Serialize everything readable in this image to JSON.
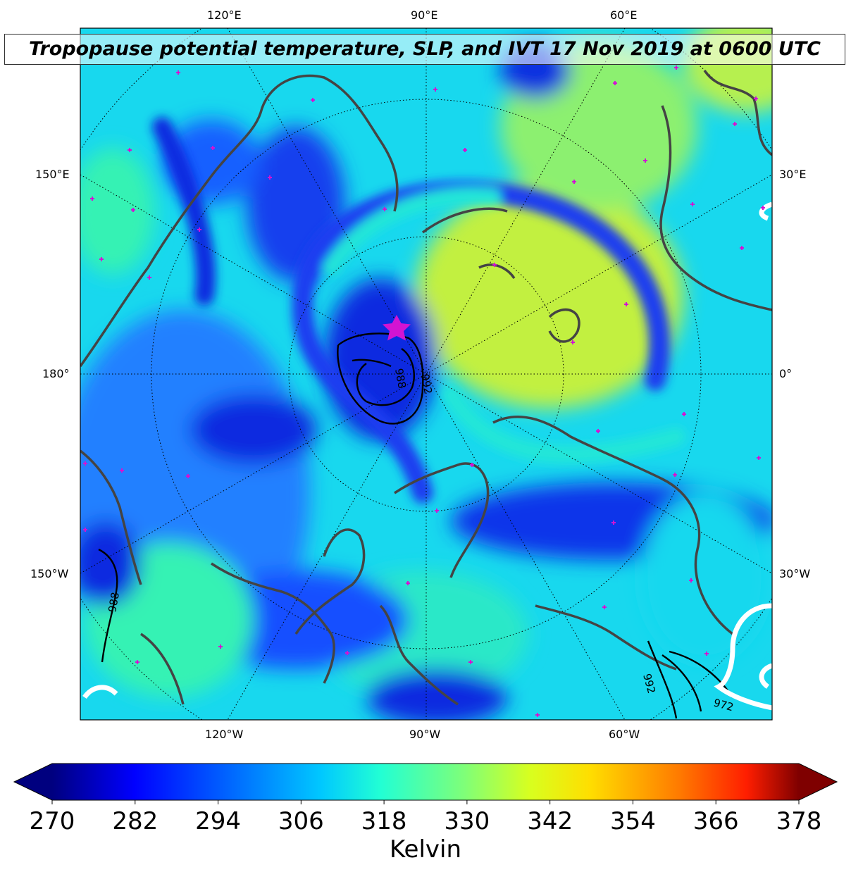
{
  "title": "Tropopause potential temperature, SLP, and IVT 17 Nov 2019 at 0600 UTC",
  "map": {
    "top_labels": [
      "120°E",
      "90°E",
      "60°E"
    ],
    "bottom_labels": [
      "120°W",
      "90°W",
      "60°W"
    ],
    "left_labels": [
      "150°E",
      "180°",
      "150°W"
    ],
    "right_labels": [
      "30°E",
      "0°",
      "30°W"
    ],
    "slp_contour_labels": [
      "992",
      "988",
      "992",
      "972",
      "988"
    ],
    "marker": "star-icon",
    "colors": {
      "deep_blue": "#0018d6",
      "blue": "#1450ff",
      "cyan": "#18dcf0",
      "teal_green": "#36f2b4",
      "yellow_green": "#c2f040",
      "coastline": "#444444",
      "marker": "#d214d2"
    }
  },
  "colorbar": {
    "ticks": [
      "270",
      "282",
      "294",
      "306",
      "318",
      "330",
      "342",
      "354",
      "366",
      "378"
    ],
    "tick_values": [
      270,
      282,
      294,
      306,
      318,
      330,
      342,
      354,
      366,
      378
    ],
    "min": 270,
    "max": 378,
    "extend": "both",
    "colormap": "jet",
    "label": "Kelvin"
  }
}
